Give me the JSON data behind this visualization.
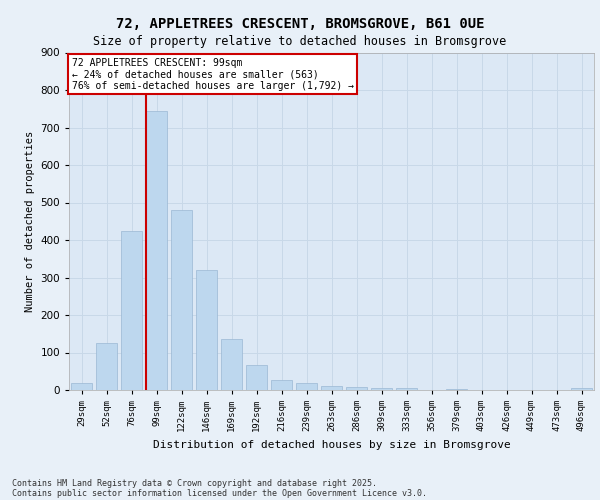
{
  "title_line1": "72, APPLETREES CRESCENT, BROMSGROVE, B61 0UE",
  "title_line2": "Size of property relative to detached houses in Bromsgrove",
  "xlabel": "Distribution of detached houses by size in Bromsgrove",
  "ylabel": "Number of detached properties",
  "categories": [
    "29sqm",
    "52sqm",
    "76sqm",
    "99sqm",
    "122sqm",
    "146sqm",
    "169sqm",
    "192sqm",
    "216sqm",
    "239sqm",
    "263sqm",
    "286sqm",
    "309sqm",
    "333sqm",
    "356sqm",
    "379sqm",
    "403sqm",
    "426sqm",
    "449sqm",
    "473sqm",
    "496sqm"
  ],
  "values": [
    20,
    125,
    425,
    745,
    480,
    320,
    135,
    67,
    27,
    20,
    10,
    7,
    5,
    5,
    0,
    3,
    0,
    0,
    0,
    0,
    5
  ],
  "bar_color": "#bdd7ee",
  "bar_edge_color": "#9ab8d4",
  "property_line_index": 3,
  "annotation_text": "72 APPLETREES CRESCENT: 99sqm\n← 24% of detached houses are smaller (563)\n76% of semi-detached houses are larger (1,792) →",
  "annotation_box_color": "#ffffff",
  "annotation_box_edge_color": "#cc0000",
  "line_color": "#cc0000",
  "grid_color": "#c8d8e8",
  "background_color": "#e8f0f8",
  "plot_bg_color": "#dce8f5",
  "footer_line1": "Contains HM Land Registry data © Crown copyright and database right 2025.",
  "footer_line2": "Contains public sector information licensed under the Open Government Licence v3.0.",
  "ylim": [
    0,
    900
  ],
  "yticks": [
    0,
    100,
    200,
    300,
    400,
    500,
    600,
    700,
    800,
    900
  ]
}
